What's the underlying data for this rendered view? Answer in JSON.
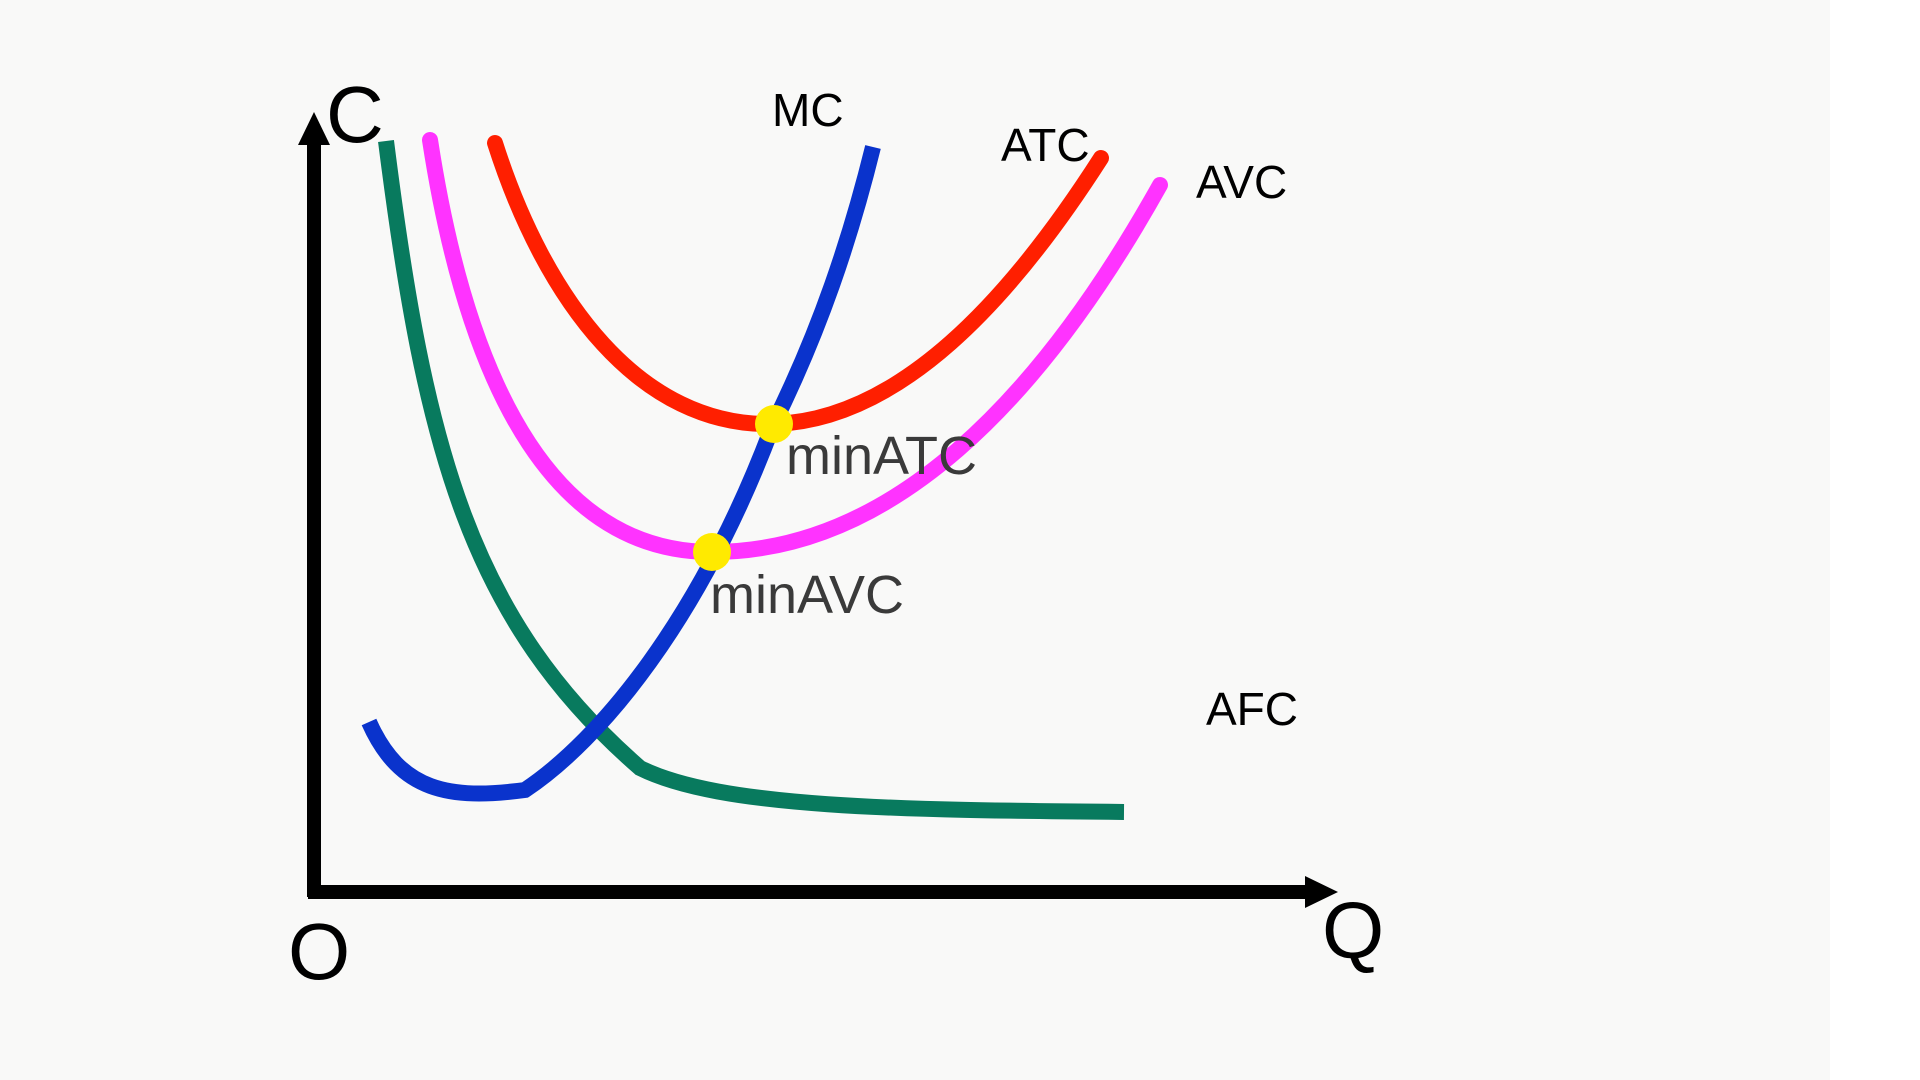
{
  "axes": {
    "y_label": "C",
    "x_label": "Q",
    "origin_label": "O"
  },
  "curves": {
    "mc": {
      "label": "MC",
      "color": "#0a33cc"
    },
    "atc": {
      "label": "ATC",
      "color": "#ff1f00"
    },
    "avc": {
      "label": "AVC",
      "color": "#ff33ff"
    },
    "afc": {
      "label": "AFC",
      "color": "#087a5e"
    }
  },
  "points": {
    "min_atc": {
      "label": "minATC",
      "color": "#ffea00"
    },
    "min_avc": {
      "label": "minAVC",
      "color": "#ffea00"
    }
  },
  "colors": {
    "axis": "#000000",
    "background": "#f9f9f8"
  }
}
